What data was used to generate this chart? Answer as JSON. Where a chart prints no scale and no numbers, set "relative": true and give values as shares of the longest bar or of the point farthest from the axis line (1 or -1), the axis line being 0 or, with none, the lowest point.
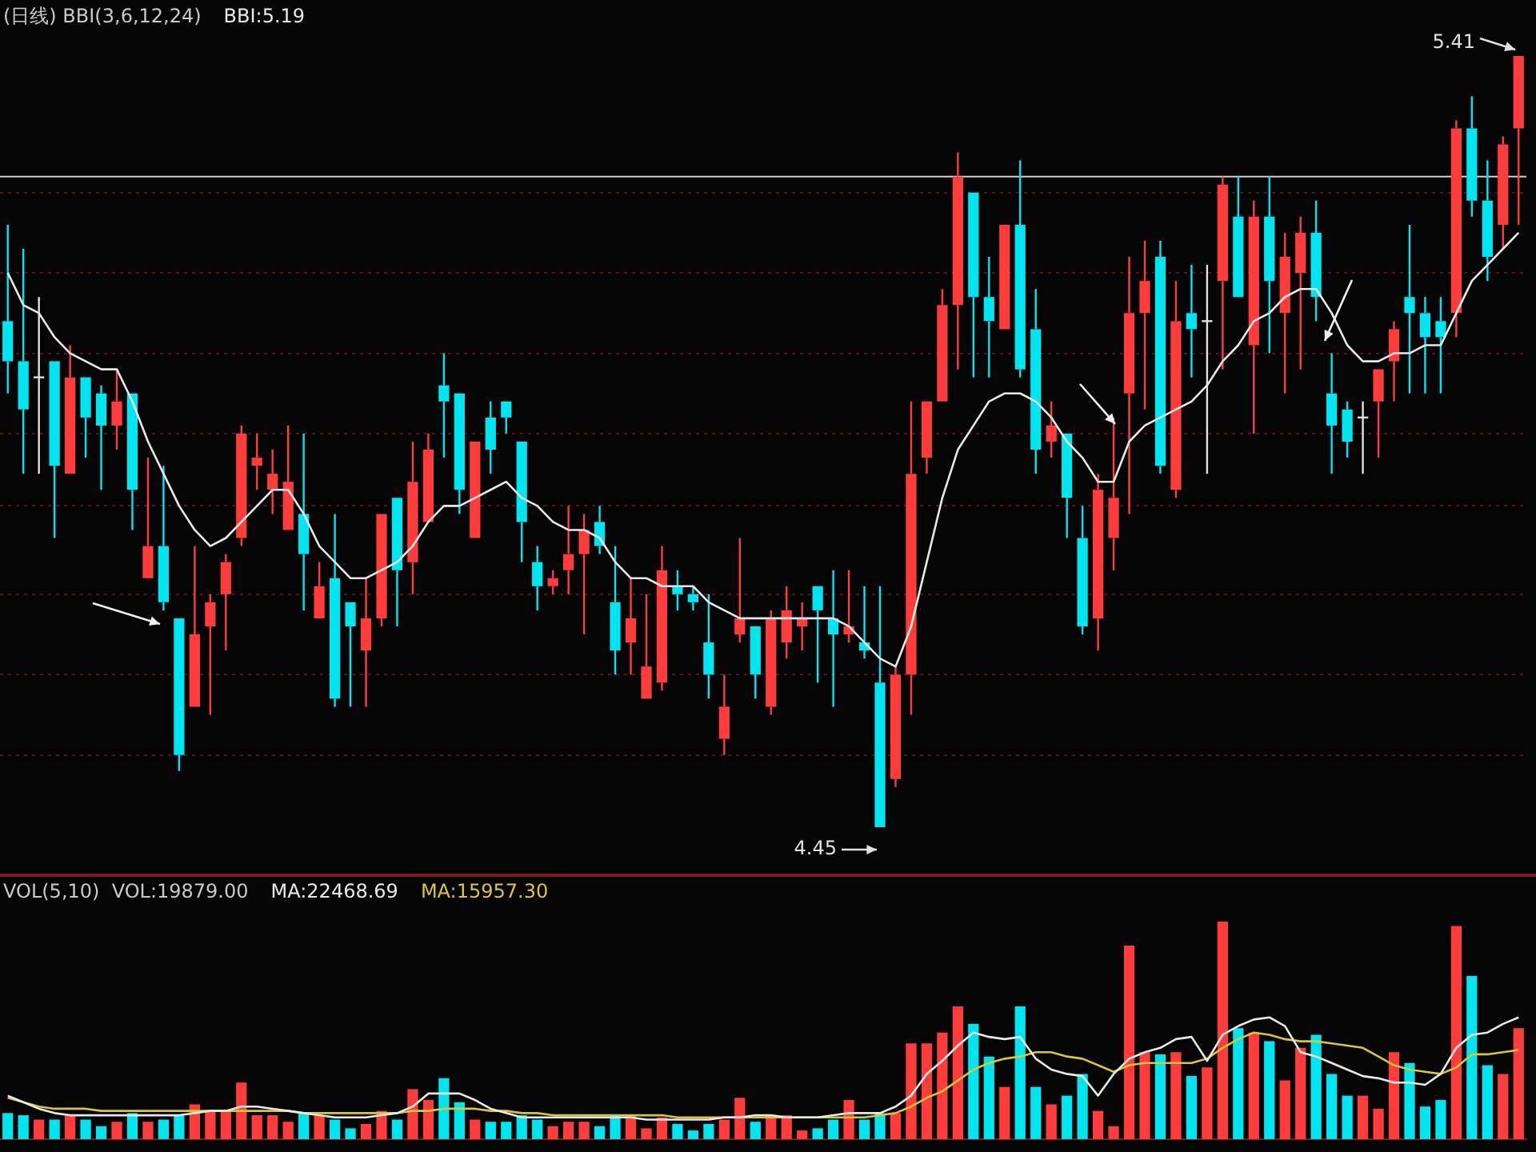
{
  "chart_data": [
    {
      "type": "candlestick",
      "title": "(日线) BBI(3,6,12,24)",
      "tick_labels": false,
      "grid": "y",
      "marker": "none",
      "categories": [
        null,
        null,
        null,
        null,
        null,
        null,
        null,
        null,
        null,
        null,
        null,
        null,
        null,
        null,
        null,
        null,
        null,
        null,
        null,
        null,
        null,
        null,
        null,
        null,
        null,
        null,
        null,
        null,
        null,
        null,
        null,
        null,
        null,
        null,
        null,
        null,
        null,
        null,
        null,
        null,
        null,
        null,
        null,
        null,
        null,
        null,
        null,
        null,
        null,
        null,
        null,
        null,
        null,
        null,
        null,
        null,
        null,
        null,
        null,
        null,
        null,
        null,
        null,
        null,
        null,
        null,
        null,
        null,
        null,
        null,
        null,
        null,
        null,
        null,
        null,
        null,
        null,
        null,
        null,
        null,
        null,
        null,
        null,
        null,
        null,
        null,
        null,
        null,
        null,
        null,
        null,
        null,
        null,
        null,
        null,
        null,
        null,
        null
      ],
      "ohlc": [
        [
          5.08,
          5.2,
          4.99,
          5.03
        ],
        [
          5.03,
          5.17,
          4.89,
          4.97
        ],
        [
          5.01,
          5.11,
          4.89,
          5.01
        ],
        [
          5.03,
          5.03,
          4.81,
          4.9
        ],
        [
          4.89,
          5.05,
          4.89,
          5.01
        ],
        [
          5.01,
          5.01,
          4.91,
          4.96
        ],
        [
          4.99,
          5.0,
          4.87,
          4.95
        ],
        [
          4.95,
          5.02,
          4.92,
          4.98
        ],
        [
          4.99,
          4.99,
          4.82,
          4.87
        ],
        [
          4.76,
          4.91,
          4.76,
          4.8
        ],
        [
          4.8,
          4.9,
          4.72,
          4.73
        ],
        [
          4.71,
          4.71,
          4.52,
          4.54
        ],
        [
          4.6,
          4.8,
          4.6,
          4.69
        ],
        [
          4.7,
          4.74,
          4.59,
          4.73
        ],
        [
          4.74,
          4.79,
          4.67,
          4.78
        ],
        [
          4.81,
          4.95,
          4.8,
          4.94
        ],
        [
          4.9,
          4.94,
          4.87,
          4.91
        ],
        [
          4.87,
          4.92,
          4.84,
          4.89
        ],
        [
          4.82,
          4.95,
          4.82,
          4.88
        ],
        [
          4.84,
          4.94,
          4.72,
          4.79
        ],
        [
          4.71,
          4.78,
          4.71,
          4.75
        ],
        [
          4.76,
          4.84,
          4.6,
          4.61
        ],
        [
          4.73,
          4.73,
          4.6,
          4.7
        ],
        [
          4.67,
          4.76,
          4.6,
          4.71
        ],
        [
          4.71,
          4.84,
          4.7,
          4.84
        ],
        [
          4.86,
          4.86,
          4.7,
          4.77
        ],
        [
          4.78,
          4.93,
          4.74,
          4.88
        ],
        [
          4.83,
          4.94,
          4.83,
          4.92
        ],
        [
          5.0,
          5.04,
          4.91,
          4.98
        ],
        [
          4.99,
          4.99,
          4.84,
          4.87
        ],
        [
          4.81,
          4.93,
          4.81,
          4.93
        ],
        [
          4.96,
          4.98,
          4.89,
          4.92
        ],
        [
          4.98,
          4.98,
          4.94,
          4.96
        ],
        [
          4.93,
          4.93,
          4.78,
          4.83
        ],
        [
          4.78,
          4.8,
          4.72,
          4.75
        ],
        [
          4.75,
          4.77,
          4.74,
          4.76
        ],
        [
          4.77,
          4.85,
          4.74,
          4.79
        ],
        [
          4.79,
          4.84,
          4.69,
          4.82
        ],
        [
          4.83,
          4.85,
          4.79,
          4.8
        ],
        [
          4.73,
          4.8,
          4.64,
          4.67
        ],
        [
          4.68,
          4.76,
          4.64,
          4.71
        ],
        [
          4.61,
          4.74,
          4.61,
          4.65
        ],
        [
          4.63,
          4.8,
          4.62,
          4.77
        ],
        [
          4.75,
          4.77,
          4.72,
          4.74
        ],
        [
          4.74,
          4.75,
          4.72,
          4.73
        ],
        [
          4.68,
          4.74,
          4.61,
          4.64
        ],
        [
          4.56,
          4.64,
          4.54,
          4.6
        ],
        [
          4.69,
          4.81,
          4.68,
          4.71
        ],
        [
          4.7,
          4.7,
          4.61,
          4.64
        ],
        [
          4.6,
          4.72,
          4.59,
          4.71
        ],
        [
          4.68,
          4.75,
          4.66,
          4.72
        ],
        [
          4.7,
          4.73,
          4.67,
          4.71
        ],
        [
          4.75,
          4.75,
          4.63,
          4.72
        ],
        [
          4.71,
          4.77,
          4.6,
          4.69
        ],
        [
          4.69,
          4.77,
          4.68,
          4.7
        ],
        [
          4.68,
          4.75,
          4.66,
          4.67
        ],
        [
          4.63,
          4.75,
          4.45,
          4.45
        ],
        [
          4.51,
          4.65,
          4.5,
          4.64
        ],
        [
          4.64,
          4.98,
          4.59,
          4.89
        ],
        [
          4.91,
          4.98,
          4.89,
          4.98
        ],
        [
          4.98,
          5.12,
          4.98,
          5.1
        ],
        [
          5.1,
          5.29,
          5.02,
          5.26
        ],
        [
          5.24,
          5.24,
          5.01,
          5.11
        ],
        [
          5.11,
          5.16,
          5.01,
          5.08
        ],
        [
          5.07,
          5.2,
          5.07,
          5.2
        ],
        [
          5.2,
          5.28,
          5.01,
          5.02
        ],
        [
          5.07,
          5.12,
          4.89,
          4.92
        ],
        [
          4.93,
          4.98,
          4.91,
          4.95
        ],
        [
          4.94,
          4.94,
          4.81,
          4.86
        ],
        [
          4.81,
          4.85,
          4.69,
          4.7
        ],
        [
          4.71,
          4.89,
          4.67,
          4.87
        ],
        [
          4.81,
          4.96,
          4.77,
          4.86
        ],
        [
          4.99,
          5.16,
          4.84,
          5.09
        ],
        [
          5.09,
          5.18,
          4.97,
          5.13
        ],
        [
          5.16,
          5.18,
          4.89,
          4.9
        ],
        [
          4.87,
          5.13,
          4.86,
          5.08
        ],
        [
          5.09,
          5.15,
          5.01,
          5.07
        ],
        [
          5.08,
          5.15,
          4.89,
          5.08
        ],
        [
          5.13,
          5.26,
          5.02,
          5.25
        ],
        [
          5.21,
          5.26,
          5.11,
          5.11
        ],
        [
          5.05,
          5.23,
          4.94,
          5.21
        ],
        [
          5.21,
          5.26,
          5.04,
          5.13
        ],
        [
          5.09,
          5.19,
          4.99,
          5.16
        ],
        [
          5.14,
          5.21,
          5.02,
          5.19
        ],
        [
          5.19,
          5.23,
          5.08,
          5.11
        ],
        [
          4.99,
          5.04,
          4.89,
          4.95
        ],
        [
          4.97,
          4.98,
          4.91,
          4.93
        ],
        [
          4.96,
          4.98,
          4.89,
          4.96
        ],
        [
          4.98,
          5.02,
          4.91,
          5.02
        ],
        [
          5.03,
          5.08,
          4.98,
          5.07
        ],
        [
          5.11,
          5.2,
          4.99,
          5.09
        ],
        [
          5.09,
          5.11,
          4.99,
          5.06
        ],
        [
          5.08,
          5.11,
          4.99,
          5.06
        ],
        [
          5.09,
          5.33,
          5.06,
          5.32
        ],
        [
          5.32,
          5.36,
          5.21,
          5.23
        ],
        [
          5.23,
          5.28,
          5.13,
          5.16
        ],
        [
          5.2,
          5.31,
          5.17,
          5.3
        ],
        [
          5.32,
          5.41,
          5.2,
          5.41
        ]
      ],
      "colors": [
        "#00e6f0",
        "#00e6f0",
        "#e0e0e0",
        "#00e6f0",
        "#ff3c3c",
        "#00e6f0",
        "#00e6f0",
        "#ff3c3c",
        "#00e6f0",
        "#ff3c3c",
        "#00e6f0",
        "#00e6f0",
        "#ff3c3c",
        "#ff3c3c",
        "#ff3c3c",
        "#ff3c3c",
        "#ff3c3c",
        "#ff3c3c",
        "#ff3c3c",
        "#00e6f0",
        "#ff3c3c",
        "#00e6f0",
        "#00e6f0",
        "#ff3c3c",
        "#ff3c3c",
        "#00e6f0",
        "#ff3c3c",
        "#ff3c3c",
        "#00e6f0",
        "#00e6f0",
        "#ff3c3c",
        "#00e6f0",
        "#00e6f0",
        "#00e6f0",
        "#00e6f0",
        "#ff3c3c",
        "#ff3c3c",
        "#ff3c3c",
        "#00e6f0",
        "#00e6f0",
        "#ff3c3c",
        "#ff3c3c",
        "#ff3c3c",
        "#00e6f0",
        "#00e6f0",
        "#00e6f0",
        "#ff3c3c",
        "#ff3c3c",
        "#00e6f0",
        "#ff3c3c",
        "#ff3c3c",
        "#ff3c3c",
        "#00e6f0",
        "#00e6f0",
        "#ff3c3c",
        "#00e6f0",
        "#00e6f0",
        "#ff3c3c",
        "#ff3c3c",
        "#ff3c3c",
        "#ff3c3c",
        "#ff3c3c",
        "#00e6f0",
        "#00e6f0",
        "#ff3c3c",
        "#00e6f0",
        "#00e6f0",
        "#ff3c3c",
        "#00e6f0",
        "#00e6f0",
        "#ff3c3c",
        "#ff3c3c",
        "#ff3c3c",
        "#ff3c3c",
        "#00e6f0",
        "#ff3c3c",
        "#00e6f0",
        "#e0e0e0",
        "#ff3c3c",
        "#00e6f0",
        "#ff3c3c",
        "#00e6f0",
        "#ff3c3c",
        "#ff3c3c",
        "#00e6f0",
        "#00e6f0",
        "#00e6f0",
        "#e0e0e0",
        "#ff3c3c",
        "#ff3c3c",
        "#00e6f0",
        "#00e6f0",
        "#00e6f0",
        "#ff3c3c",
        "#00e6f0",
        "#00e6f0",
        "#ff3c3c",
        "#ff3c3c"
      ],
      "series": [
        {
          "name": "BBI:5.19",
          "type": "line",
          "color": "#e8e8e8",
          "values": [
            5.14,
            5.1,
            5.09,
            5.06,
            5.04,
            5.03,
            5.02,
            5.02,
            4.98,
            4.93,
            4.89,
            4.85,
            4.82,
            4.8,
            4.81,
            4.83,
            4.85,
            4.87,
            4.87,
            4.84,
            4.8,
            4.78,
            4.76,
            4.76,
            4.77,
            4.78,
            4.8,
            4.83,
            4.85,
            4.85,
            4.86,
            4.87,
            4.88,
            4.86,
            4.85,
            4.83,
            4.82,
            4.82,
            4.81,
            4.78,
            4.76,
            4.76,
            4.75,
            4.75,
            4.75,
            4.73,
            4.72,
            4.71,
            4.71,
            4.71,
            4.71,
            4.71,
            4.71,
            4.71,
            4.7,
            4.68,
            4.66,
            4.65,
            4.7,
            4.78,
            4.86,
            4.92,
            4.95,
            4.98,
            4.99,
            4.99,
            4.98,
            4.96,
            4.93,
            4.91,
            4.88,
            4.88,
            4.93,
            4.95,
            4.96,
            4.97,
            4.98,
            5.0,
            5.03,
            5.05,
            5.08,
            5.09,
            5.11,
            5.12,
            5.12,
            5.09,
            5.05,
            5.03,
            5.03,
            5.04,
            5.04,
            5.05,
            5.05,
            5.09,
            5.13,
            5.15,
            5.17,
            5.19
          ]
        }
      ],
      "yticks": [
        {
          "value": 4.54,
          "label": null
        },
        {
          "value": 4.64,
          "label": null
        },
        {
          "value": 4.74,
          "label": null
        },
        {
          "value": 4.85,
          "label": null
        },
        {
          "value": 4.94,
          "label": null
        },
        {
          "value": 5.04,
          "label": null
        },
        {
          "value": 5.14,
          "label": null
        },
        {
          "value": 5.24,
          "label": null
        }
      ],
      "ref_lines": [
        {
          "axis": "y",
          "value": 5.26,
          "color": "#d0d0d0"
        }
      ],
      "annotations": [
        "4.45",
        "5.41"
      ]
    },
    {
      "type": "bar",
      "title": "VOL(5,10)  VOL:19879.00",
      "relative": true,
      "tick_labels": false,
      "marker": "none",
      "categories": [
        null,
        null,
        null,
        null,
        null,
        null,
        null,
        null,
        null,
        null,
        null,
        null,
        null,
        null,
        null,
        null,
        null,
        null,
        null,
        null,
        null,
        null,
        null,
        null,
        null,
        null,
        null,
        null,
        null,
        null,
        null,
        null,
        null,
        null,
        null,
        null,
        null,
        null,
        null,
        null,
        null,
        null,
        null,
        null,
        null,
        null,
        null,
        null,
        null,
        null,
        null,
        null,
        null,
        null,
        null,
        null,
        null,
        null,
        null,
        null,
        null,
        null,
        null,
        null,
        null,
        null,
        null,
        null,
        null,
        null,
        null,
        null,
        null,
        null,
        null,
        null,
        null,
        null,
        null,
        null,
        null,
        null,
        null,
        null,
        null,
        null,
        null,
        null,
        null,
        null,
        null,
        null,
        null,
        null,
        null,
        null,
        null,
        null
      ],
      "series": [
        {
          "colors": [
            "#00e6f0",
            "#00e6f0",
            "#ff3c3c",
            "#00e6f0",
            "#ff3c3c",
            "#00e6f0",
            "#00e6f0",
            "#ff3c3c",
            "#00e6f0",
            "#ff3c3c",
            "#00e6f0",
            "#00e6f0",
            "#ff3c3c",
            "#ff3c3c",
            "#ff3c3c",
            "#ff3c3c",
            "#ff3c3c",
            "#ff3c3c",
            "#ff3c3c",
            "#00e6f0",
            "#ff3c3c",
            "#00e6f0",
            "#00e6f0",
            "#ff3c3c",
            "#ff3c3c",
            "#00e6f0",
            "#ff3c3c",
            "#ff3c3c",
            "#00e6f0",
            "#00e6f0",
            "#ff3c3c",
            "#00e6f0",
            "#00e6f0",
            "#00e6f0",
            "#00e6f0",
            "#ff3c3c",
            "#ff3c3c",
            "#ff3c3c",
            "#00e6f0",
            "#00e6f0",
            "#ff3c3c",
            "#ff3c3c",
            "#ff3c3c",
            "#00e6f0",
            "#00e6f0",
            "#00e6f0",
            "#ff3c3c",
            "#ff3c3c",
            "#00e6f0",
            "#ff3c3c",
            "#ff3c3c",
            "#ff3c3c",
            "#00e6f0",
            "#00e6f0",
            "#ff3c3c",
            "#00e6f0",
            "#00e6f0",
            "#ff3c3c",
            "#ff3c3c",
            "#ff3c3c",
            "#ff3c3c",
            "#ff3c3c",
            "#00e6f0",
            "#00e6f0",
            "#ff3c3c",
            "#00e6f0",
            "#00e6f0",
            "#ff3c3c",
            "#00e6f0",
            "#00e6f0",
            "#ff3c3c",
            "#ff3c3c",
            "#ff3c3c",
            "#ff3c3c",
            "#00e6f0",
            "#ff3c3c",
            "#00e6f0",
            "#ff3c3c",
            "#ff3c3c",
            "#00e6f0",
            "#ff3c3c",
            "#00e6f0",
            "#ff3c3c",
            "#ff3c3c",
            "#00e6f0",
            "#00e6f0",
            "#00e6f0",
            "#ff3c3c",
            "#ff3c3c",
            "#ff3c3c",
            "#00e6f0",
            "#00e6f0",
            "#00e6f0",
            "#ff3c3c",
            "#00e6f0",
            "#00e6f0",
            "#ff3c3c",
            "#ff3c3c"
          ],
          "values": [
            0.12,
            0.11,
            0.09,
            0.09,
            0.11,
            0.09,
            0.06,
            0.08,
            0.12,
            0.08,
            0.09,
            0.11,
            0.16,
            0.13,
            0.13,
            0.26,
            0.11,
            0.11,
            0.08,
            0.12,
            0.11,
            0.09,
            0.05,
            0.07,
            0.13,
            0.09,
            0.23,
            0.18,
            0.28,
            0.17,
            0.09,
            0.08,
            0.08,
            0.11,
            0.09,
            0.06,
            0.08,
            0.08,
            0.06,
            0.11,
            0.11,
            0.05,
            0.1,
            0.07,
            0.04,
            0.07,
            0.09,
            0.19,
            0.08,
            0.11,
            0.11,
            0.04,
            0.05,
            0.09,
            0.18,
            0.09,
            0.12,
            0.12,
            0.44,
            0.44,
            0.49,
            0.61,
            0.53,
            0.38,
            0.24,
            0.61,
            0.24,
            0.16,
            0.2,
            0.3,
            0.13,
            0.06,
            0.89,
            0.4,
            0.39,
            0.4,
            0.29,
            0.33,
            1,
            0.51,
            0.49,
            0.45,
            0.27,
            0.42,
            0.48,
            0.3,
            0.2,
            0.2,
            0.14,
            0.4,
            0.35,
            0.15,
            0.18,
            0.98,
            0.75,
            0.34,
            0.3,
            0.51
          ]
        },
        {
          "name": "MA:22468.69",
          "type": "line",
          "color": "#e8e8e8",
          "values": [
            0.2,
            0.17,
            0.14,
            0.12,
            0.11,
            0.11,
            0.11,
            0.11,
            0.11,
            0.11,
            0.11,
            0.11,
            0.12,
            0.13,
            0.13,
            0.15,
            0.15,
            0.14,
            0.13,
            0.12,
            0.11,
            0.1,
            0.1,
            0.1,
            0.11,
            0.12,
            0.15,
            0.21,
            0.21,
            0.21,
            0.18,
            0.14,
            0.12,
            0.1,
            0.1,
            0.1,
            0.1,
            0.1,
            0.1,
            0.1,
            0.1,
            0.09,
            0.09,
            0.09,
            0.09,
            0.09,
            0.1,
            0.1,
            0.11,
            0.11,
            0.1,
            0.1,
            0.1,
            0.11,
            0.12,
            0.12,
            0.12,
            0.15,
            0.2,
            0.3,
            0.36,
            0.43,
            0.49,
            0.47,
            0.46,
            0.47,
            0.37,
            0.32,
            0.3,
            0.29,
            0.2,
            0.3,
            0.37,
            0.4,
            0.42,
            0.46,
            0.47,
            0.36,
            0.48,
            0.52,
            0.55,
            0.56,
            0.52,
            0.4,
            0.38,
            0.35,
            0.32,
            0.29,
            0.28,
            0.26,
            0.26,
            0.25,
            0.3,
            0.42,
            0.48,
            0.49,
            0.53,
            0.56
          ]
        },
        {
          "name": "MA:15957.30",
          "type": "line",
          "color": "#d8c830",
          "values": [
            0.19,
            0.17,
            0.15,
            0.14,
            0.14,
            0.14,
            0.13,
            0.13,
            0.13,
            0.13,
            0.13,
            0.13,
            0.13,
            0.13,
            0.13,
            0.13,
            0.13,
            0.13,
            0.13,
            0.12,
            0.12,
            0.12,
            0.12,
            0.12,
            0.12,
            0.12,
            0.13,
            0.13,
            0.14,
            0.14,
            0.14,
            0.13,
            0.13,
            0.12,
            0.12,
            0.11,
            0.11,
            0.11,
            0.11,
            0.11,
            0.11,
            0.11,
            0.11,
            0.1,
            0.1,
            0.1,
            0.1,
            0.1,
            0.1,
            0.1,
            0.1,
            0.1,
            0.1,
            0.1,
            0.1,
            0.1,
            0.11,
            0.12,
            0.15,
            0.19,
            0.22,
            0.27,
            0.32,
            0.35,
            0.37,
            0.38,
            0.4,
            0.4,
            0.38,
            0.37,
            0.34,
            0.31,
            0.34,
            0.35,
            0.35,
            0.35,
            0.35,
            0.37,
            0.42,
            0.46,
            0.49,
            0.48,
            0.46,
            0.45,
            0.45,
            0.44,
            0.43,
            0.42,
            0.38,
            0.34,
            0.32,
            0.31,
            0.3,
            0.33,
            0.39,
            0.39,
            0.4,
            0.41
          ]
        }
      ]
    }
  ]
}
